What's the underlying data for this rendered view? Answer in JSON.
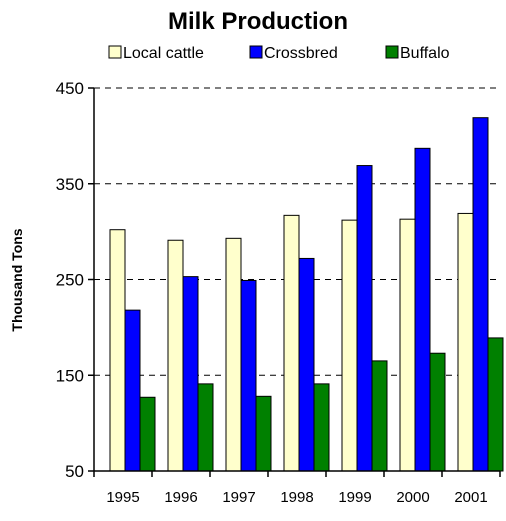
{
  "chart_data": {
    "type": "bar",
    "title": "Milk Production",
    "xlabel": "",
    "ylabel": "Thousand Tons",
    "ylim": [
      50,
      450
    ],
    "yticks": [
      50,
      150,
      250,
      350,
      450
    ],
    "grid": "horizontal dashed",
    "legend_position": "top",
    "categories": [
      "1995",
      "1996",
      "1997",
      "1998",
      "1999",
      "2000",
      "2001"
    ],
    "series": [
      {
        "name": "Local cattle",
        "color": "#FFFFCC",
        "values": [
          302,
          291,
          293,
          317,
          312,
          313,
          319
        ]
      },
      {
        "name": "Crossbred",
        "color": "#0000FF",
        "values": [
          218,
          253,
          249,
          272,
          369,
          387,
          419
        ]
      },
      {
        "name": "Buffalo",
        "color": "#008000",
        "values": [
          127,
          141,
          128,
          141,
          165,
          173,
          189
        ]
      }
    ]
  }
}
